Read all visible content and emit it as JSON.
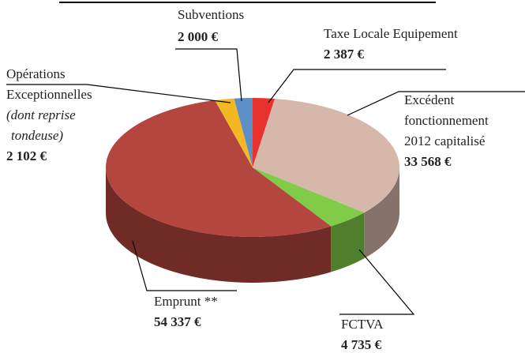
{
  "chart_data": {
    "type": "pie3d",
    "categories": [
      [
        "Taxe Locale Equipement"
      ],
      [
        "Excédent",
        "fonctionnement",
        "2012 capitalisé"
      ],
      [
        "FCTVA"
      ],
      [
        "Emprunt **"
      ],
      [
        "Opérations",
        "Exceptionnelles"
      ],
      [
        "Subventions"
      ]
    ],
    "notes": [
      [],
      [],
      [],
      [],
      [
        "(dont reprise",
        "tondeuse)"
      ],
      []
    ],
    "values": [
      2387,
      33568,
      4735,
      54337,
      2102,
      2000
    ],
    "value_labels": [
      "2 387 €",
      "33 568 €",
      "4 735 €",
      "54 337 €",
      "2 102 €",
      "2 000 €"
    ],
    "colors": [
      "#e8322e",
      "#d6b8ab",
      "#80cc48",
      "#b4463f",
      "#f4b823",
      "#5b8fc6"
    ]
  }
}
